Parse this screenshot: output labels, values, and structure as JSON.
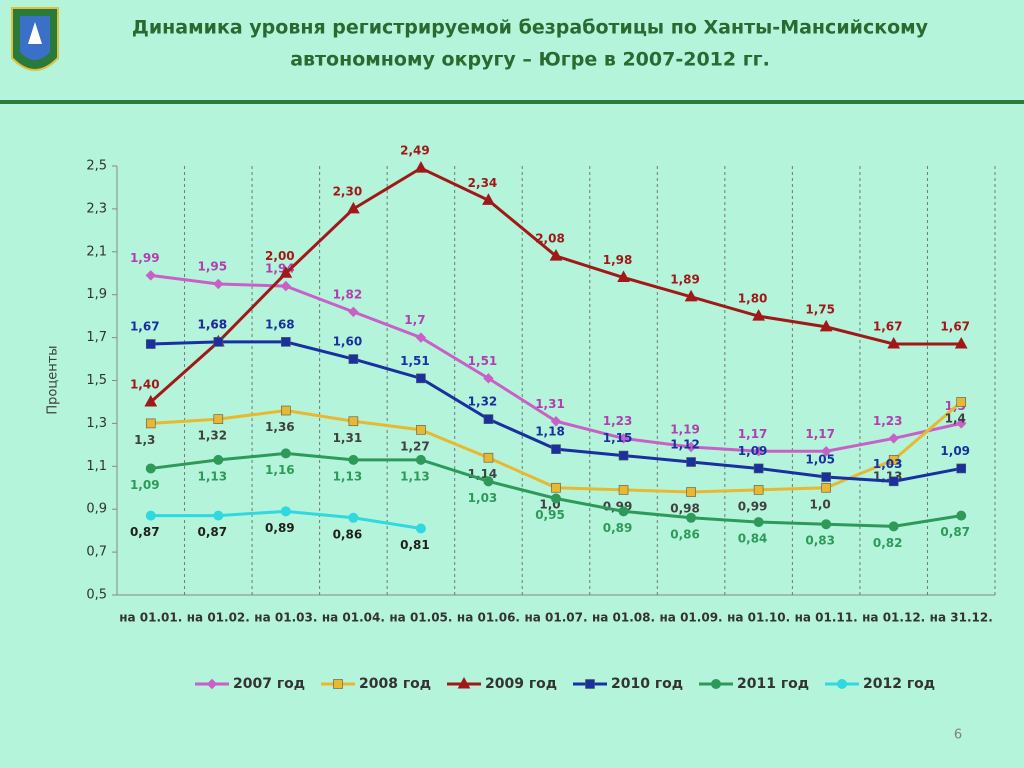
{
  "title": [
    "Динамика уровня регистрируемой безработицы по Ханты-Мансийскому",
    "автономному округу – Югре в 2007-2012 гг."
  ],
  "page_number": "6",
  "chart_data": {
    "type": "line",
    "y_label": "Проценты",
    "categories": [
      "на 01.01.",
      "на 01.02.",
      "на 01.03.",
      "на 01.04.",
      "на 01.05.",
      "на 01.06.",
      "на 01.07.",
      "на 01.08.",
      "на 01.09.",
      "на 01.10.",
      "на 01.11.",
      "на 01.12.",
      "на 31.12."
    ],
    "ylim": [
      0.5,
      2.5
    ],
    "yticks": [
      {
        "value": 0.5,
        "label": "0,5"
      },
      {
        "value": 0.7,
        "label": "0,7"
      },
      {
        "value": 0.9,
        "label": "0,9"
      },
      {
        "value": 1.1,
        "label": "1,1"
      },
      {
        "value": 1.3,
        "label": "1,3"
      },
      {
        "value": 1.5,
        "label": "1,5"
      },
      {
        "value": 1.7,
        "label": "1,7"
      },
      {
        "value": 1.9,
        "label": "1,9"
      },
      {
        "value": 2.1,
        "label": "2,1"
      },
      {
        "value": 2.3,
        "label": "2,3"
      },
      {
        "value": 2.5,
        "label": "2,5"
      }
    ],
    "grid": "vertical",
    "legend": "bottom",
    "series": [
      {
        "name": "2007 год",
        "color": "#c860c8",
        "label_color": "#b040b0",
        "marker": "diamond",
        "label_side": "above",
        "values": [
          1.99,
          1.95,
          1.94,
          1.82,
          1.7,
          1.51,
          1.31,
          1.23,
          1.19,
          1.17,
          1.17,
          1.23,
          1.3
        ],
        "value_labels": [
          "1,99",
          "1,95",
          "1,94",
          "1,82",
          "1,7",
          "1,51",
          "1,31",
          "1,23",
          "1,19",
          "1,17",
          "1,17",
          "1,23",
          "1,3"
        ]
      },
      {
        "name": "2008 год",
        "color": "#e8b830",
        "label_color": "#404040",
        "marker": "square",
        "label_side": "below",
        "values": [
          1.3,
          1.32,
          1.36,
          1.31,
          1.27,
          1.14,
          1.0,
          0.99,
          0.98,
          0.99,
          1.0,
          1.13,
          1.4
        ],
        "value_labels": [
          "1,3",
          "1,32",
          "1,36",
          "1,31",
          "1,27",
          "1,14",
          "1,0",
          "0,99",
          "0,98",
          "0,99",
          "1,0",
          "1,13",
          "1,4"
        ]
      },
      {
        "name": "2009 год",
        "color": "#a01818",
        "label_color": "#a01818",
        "marker": "triangle",
        "label_side": "above",
        "values": [
          1.4,
          1.68,
          2.0,
          2.3,
          2.49,
          2.34,
          2.08,
          1.98,
          1.89,
          1.8,
          1.75,
          1.67,
          1.67
        ],
        "value_labels": [
          "1,40",
          "1,68",
          "2,00",
          "2,30",
          "2,49",
          "2,34",
          "2,08",
          "1,98",
          "1,89",
          "1,80",
          "1,75",
          "1,67",
          "1,67"
        ]
      },
      {
        "name": "2010 год",
        "color": "#1830a0",
        "label_color": "#1830a0",
        "marker": "square",
        "label_side": "above",
        "values": [
          1.67,
          1.68,
          1.68,
          1.6,
          1.51,
          1.32,
          1.18,
          1.15,
          1.12,
          1.09,
          1.05,
          1.03,
          1.09
        ],
        "value_labels": [
          "1,67",
          "1,68",
          "1,68",
          "1,60",
          "1,51",
          "1,32",
          "1,18",
          "1,15",
          "1,12",
          "1,09",
          "1,05",
          "1,03",
          "1,09"
        ]
      },
      {
        "name": "2011 год",
        "color": "#2e9a5a",
        "label_color": "#2e9a5a",
        "marker": "circle",
        "label_side": "below",
        "values": [
          1.09,
          1.13,
          1.16,
          1.13,
          1.13,
          1.03,
          0.95,
          0.89,
          0.86,
          0.84,
          0.83,
          0.82,
          0.87
        ],
        "value_labels": [
          "1,09",
          "1,13",
          "1,16",
          "1,13",
          "1,13",
          "1,03",
          "0,95",
          "0,89",
          "0,86",
          "0,84",
          "0,83",
          "0,82",
          "0,87"
        ]
      },
      {
        "name": "2012 год",
        "color": "#30d8e0",
        "label_color": "#202020",
        "marker": "circle",
        "label_side": "below",
        "values": [
          0.87,
          0.87,
          0.89,
          0.86,
          0.81,
          null,
          null,
          null,
          null,
          null,
          null,
          null,
          null
        ],
        "value_labels": [
          "0,87",
          "0,87",
          "0,89",
          "0,86",
          "0,81",
          null,
          null,
          null,
          null,
          null,
          null,
          null,
          null
        ]
      }
    ]
  }
}
